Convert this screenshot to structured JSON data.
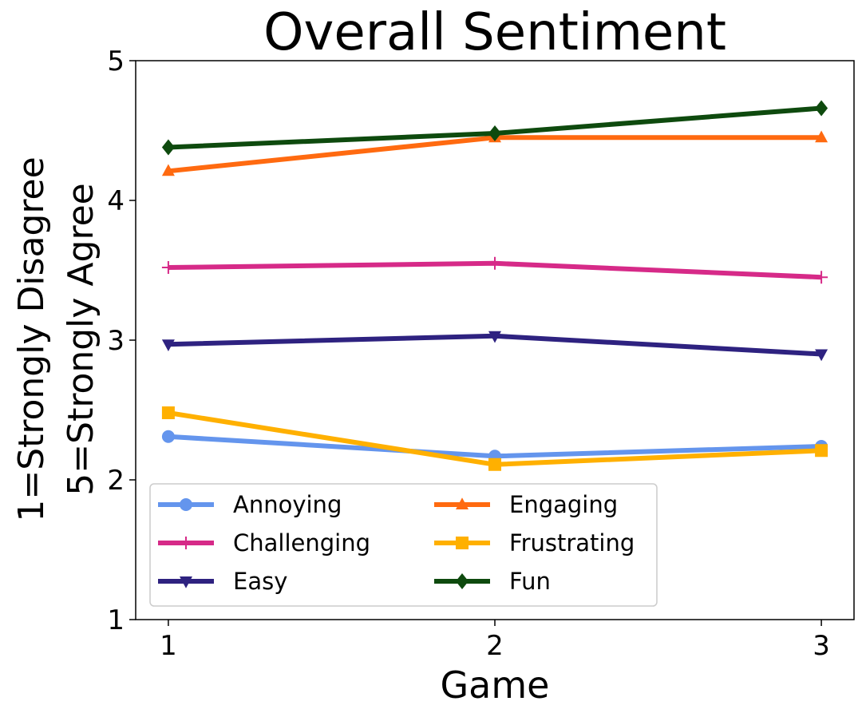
{
  "chart_data": {
    "type": "line",
    "title": "Overall Sentiment",
    "xlabel": "Game",
    "ylabel": [
      "1=Strongly Disagree",
      "5=Strongly Agree"
    ],
    "x": [
      1,
      2,
      3
    ],
    "x_ticks": [
      "1",
      "2",
      "3"
    ],
    "xlim": [
      0.9,
      3.1
    ],
    "ylim": [
      1,
      5
    ],
    "y_ticks": [
      "1",
      "2",
      "3",
      "4",
      "5"
    ],
    "grid": false,
    "legend": {
      "placement": "lower-left",
      "columns": 2
    },
    "series": [
      {
        "name": "Annoying",
        "values": [
          2.31,
          2.17,
          2.24
        ],
        "color": "#6495ED",
        "marker": "circle"
      },
      {
        "name": "Challenging",
        "values": [
          3.52,
          3.55,
          3.45
        ],
        "color": "#D62A88",
        "marker": "plus"
      },
      {
        "name": "Easy",
        "values": [
          2.97,
          3.03,
          2.9
        ],
        "color": "#2E2280",
        "marker": "triangle-down"
      },
      {
        "name": "Engaging",
        "values": [
          4.21,
          4.45,
          4.45
        ],
        "color": "#FF6A10",
        "marker": "triangle-up"
      },
      {
        "name": "Frustrating",
        "values": [
          2.48,
          2.11,
          2.21
        ],
        "color": "#FFB000",
        "marker": "square"
      },
      {
        "name": "Fun",
        "values": [
          4.38,
          4.48,
          4.66
        ],
        "color": "#0E4A0E",
        "marker": "diamond"
      }
    ]
  }
}
